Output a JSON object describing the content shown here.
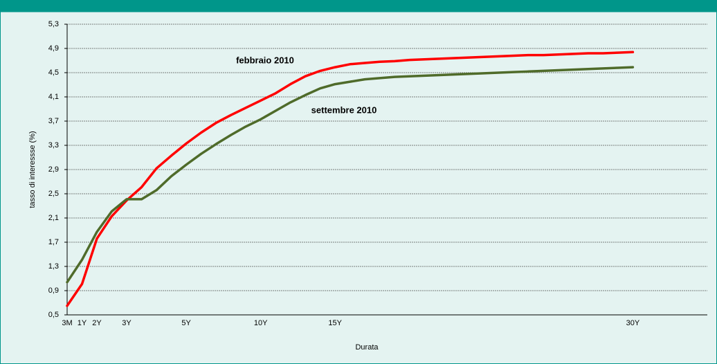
{
  "chart_data": {
    "type": "line",
    "ylabel": "tasso di interessse (%)",
    "xlabel": "Durata",
    "categories": [
      "3M",
      "1Y",
      "2Y",
      null,
      "3Y",
      null,
      null,
      null,
      "5Y",
      null,
      null,
      null,
      null,
      "10Y",
      null,
      null,
      null,
      null,
      "15Y",
      null,
      null,
      null,
      null,
      null,
      null,
      null,
      null,
      null,
      null,
      null,
      null,
      null,
      null,
      null,
      null,
      null,
      null,
      null,
      "30Y",
      null,
      null,
      null,
      null,
      null
    ],
    "series": [
      {
        "name": "febbraio 2010",
        "color": "#ff0000",
        "values": [
          0.65,
          1.01,
          1.76,
          2.13,
          2.39,
          2.61,
          2.92,
          3.13,
          3.33,
          3.51,
          3.67,
          3.8,
          3.92,
          4.04,
          4.16,
          4.31,
          4.44,
          4.53,
          4.59,
          4.64,
          4.66,
          4.68,
          4.69,
          4.71,
          4.72,
          4.73,
          4.74,
          4.75,
          4.76,
          4.77,
          4.78,
          4.79,
          4.79,
          4.8,
          4.81,
          4.82,
          4.82,
          4.83,
          4.84,
          null,
          null,
          null,
          null,
          null
        ]
      },
      {
        "name": "settembre 2010",
        "color": "#4f6b2a",
        "values": [
          1.04,
          1.41,
          1.87,
          2.21,
          2.41,
          2.41,
          2.56,
          2.79,
          2.98,
          3.16,
          3.32,
          3.47,
          3.61,
          3.73,
          3.87,
          4.01,
          4.13,
          4.24,
          4.31,
          4.35,
          4.39,
          4.41,
          4.43,
          4.44,
          4.45,
          4.46,
          4.47,
          4.48,
          4.49,
          4.5,
          4.51,
          4.52,
          4.53,
          4.54,
          4.55,
          4.56,
          4.57,
          4.58,
          4.59,
          null,
          null,
          null,
          null,
          null
        ]
      }
    ],
    "ylim": [
      0.5,
      5.3
    ],
    "yticks": [
      {
        "value": 0.5,
        "label": "0,5"
      },
      {
        "value": 0.9,
        "label": "0,9"
      },
      {
        "value": 1.3,
        "label": "1,3"
      },
      {
        "value": 1.7,
        "label": "1,7"
      },
      {
        "value": 2.1,
        "label": "2,1"
      },
      {
        "value": 2.5,
        "label": "2,5"
      },
      {
        "value": 2.9,
        "label": "2,9"
      },
      {
        "value": 3.3,
        "label": "3,3"
      },
      {
        "value": 3.7,
        "label": "3,7"
      },
      {
        "value": 4.1,
        "label": "4,1"
      },
      {
        "value": 4.5,
        "label": "4,5"
      },
      {
        "value": 4.9,
        "label": "4,9"
      },
      {
        "value": 5.3,
        "label": "5,3"
      }
    ],
    "grid": true
  }
}
